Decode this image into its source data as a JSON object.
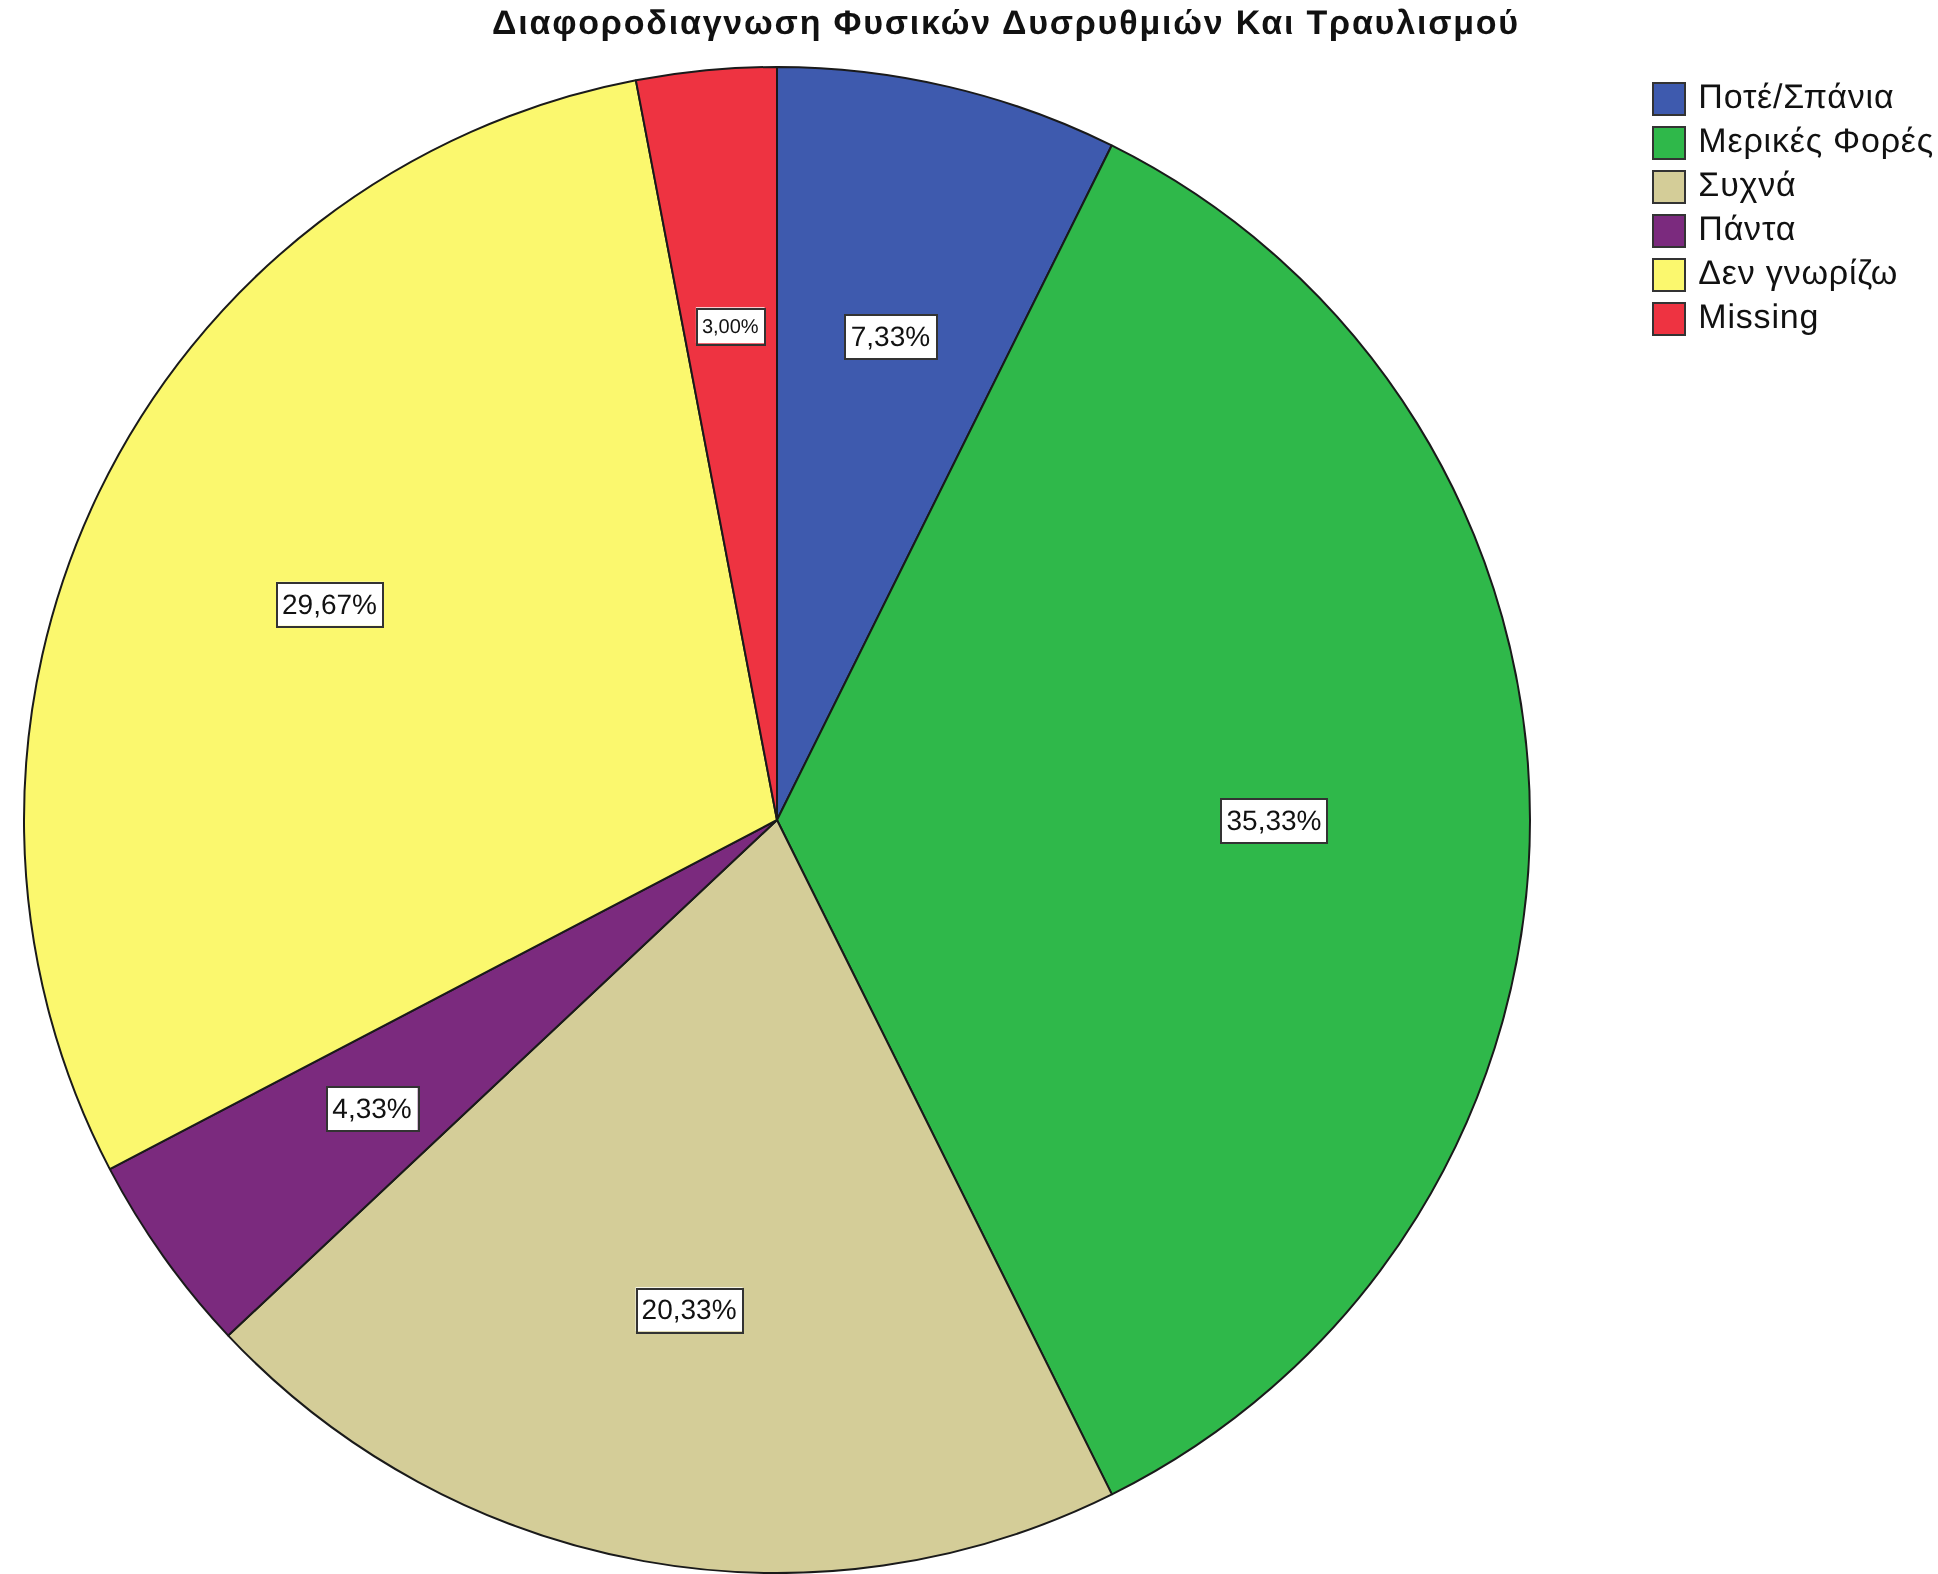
{
  "chart_data": {
    "type": "pie",
    "title": "Διαφοροδιαγνωση Φυσικών Δυσρυθμιών Και Τραυλισμού",
    "categories": [
      "Ποτέ/Σπάνια",
      "Μερικές Φορές",
      "Συχνά",
      "Πάντα",
      "Δεν γνωρίζω",
      "Missing"
    ],
    "values": [
      7.33,
      35.33,
      20.33,
      4.33,
      29.67,
      3.0
    ],
    "colors": [
      "#3e5aae",
      "#2fb84a",
      "#d4cd98",
      "#7b2a7e",
      "#fbf86e",
      "#ee3341"
    ],
    "value_labels": [
      "7,33%",
      "35,33%",
      "20,33%",
      "4,33%",
      "29,67%",
      "3,00%"
    ],
    "legend": "top right"
  }
}
